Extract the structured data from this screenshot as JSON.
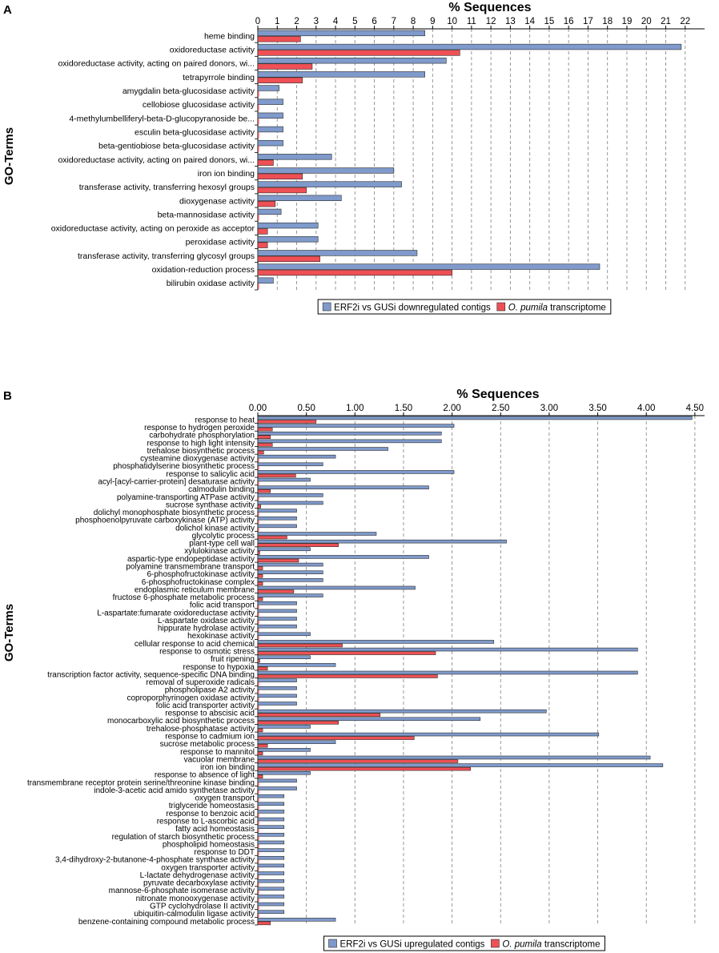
{
  "colors": {
    "series1": "#7f9acb",
    "series2": "#ee5055",
    "grid": "#8c8c8c",
    "axis": "#000000"
  },
  "chart_data": [
    {
      "panel_label": "A",
      "type": "bar",
      "orientation": "horizontal",
      "title": "% Sequences",
      "xlabel": "% Sequences",
      "ylabel": "GO-Terms",
      "xlim": [
        0,
        23
      ],
      "ticks": [
        0,
        1,
        2,
        3,
        4,
        5,
        6,
        7,
        8,
        9,
        10,
        11,
        12,
        13,
        14,
        15,
        16,
        17,
        18,
        19,
        20,
        21,
        22
      ],
      "tick_labels": [
        "0",
        "1",
        "2",
        "3",
        "4",
        "5",
        "6",
        "7",
        "8",
        "9",
        "10",
        "11",
        "12",
        "13",
        "14",
        "15",
        "16",
        "17",
        "18",
        "19",
        "20",
        "21",
        "22"
      ],
      "grid": true,
      "legend": "bottom",
      "categories": [
        "heme binding",
        "oxidoreductase activity",
        "oxidoreductase activity, acting on paired donors, wi...",
        "tetrapyrrole binding",
        "amygdalin beta-glucosidase activity",
        "cellobiose glucosidase activity",
        "4-methylumbelliferyl-beta-D-glucopyranoside be...",
        "esculin beta-glucosidase activity",
        "beta-gentiobiose beta-glucosidase activity",
        "oxidoreductase activity, acting on paired donors, wi...",
        "iron ion binding",
        "transferase activity, transferring hexosyl groups",
        "dioxygenase activity",
        "beta-mannosidase activity",
        "oxidoreductase activity, acting on peroxide as acceptor",
        "peroxidase activity",
        "transferase activity, transferring glycosyl groups",
        "oxidation-reduction process",
        "bilirubin oxidase activity"
      ],
      "series": [
        {
          "name": "ERF2i vs GUSi downregulated contigs",
          "legend_prefix": "ERF2i vs GUSi downregulated contigs",
          "legend_italic": "",
          "color": "#7f9acb",
          "values": [
            8.6,
            21.8,
            9.7,
            8.6,
            1.1,
            1.3,
            1.3,
            1.3,
            1.3,
            3.8,
            7.0,
            7.4,
            4.3,
            1.2,
            3.1,
            3.1,
            8.2,
            17.6,
            0.8
          ]
        },
        {
          "name": "O. pumila transcriptome",
          "legend_prefix": "",
          "legend_italic": "O. pumila",
          "legend_suffix": " transcriptome",
          "color": "#ee5055",
          "values": [
            2.2,
            10.4,
            2.8,
            2.3,
            0.0,
            0.0,
            0.0,
            0.0,
            0.0,
            0.8,
            2.3,
            2.5,
            0.9,
            0.0,
            0.5,
            0.5,
            3.2,
            10.0,
            0.0
          ]
        }
      ]
    },
    {
      "panel_label": "B",
      "type": "bar",
      "orientation": "horizontal",
      "title": "% Sequences",
      "xlabel": "% Sequences",
      "ylabel": "GO-Terms",
      "xlim": [
        0,
        4.6
      ],
      "ticks": [
        0,
        0.5,
        1.0,
        1.5,
        2.0,
        2.5,
        3.0,
        3.5,
        4.0,
        4.5
      ],
      "tick_labels": [
        "0.00",
        "0.50",
        "1.00",
        "1.50",
        "2.00",
        "2.50",
        "3.00",
        "3.50",
        "4.00",
        "4.50"
      ],
      "grid": true,
      "legend": "bottom",
      "categories": [
        "response to heat",
        "response to hydrogen peroxide",
        "carbohydrate phosphorylation",
        "response to high light intensity",
        "trehalose biosynthetic process",
        "cysteamine dioxygenase activity",
        "phosphatidylserine biosynthetic process",
        "response to salicylic acid",
        "acyl-[acyl-carrier-protein] desaturase activity",
        "calmodulin binding",
        "polyamine-transporting ATPase activity",
        "sucrose synthase activity",
        "dolichyl monophosphate biosynthetic process",
        "phosphoenolpyruvate carboxykinase (ATP) activity",
        "dolichol kinase activity",
        "glycolytic process",
        "plant-type cell wall",
        "xylulokinase activity",
        "aspartic-type endopeptidase activity",
        "polyamine transmembrane transport",
        "6-phosphofructokinase activity",
        "6-phosphofructokinase complex",
        "endoplasmic reticulum membrane",
        "fructose 6-phosphate metabolic process",
        "folic acid transport",
        "L-aspartate:fumarate oxidoreductase activity",
        "L-aspartate oxidase activity",
        "hippurate hydrolase activity",
        "hexokinase activity",
        "cellular response to acid chemical",
        "response to osmotic stress",
        "fruit ripening",
        "response to hypoxia",
        "transcription factor activity, sequence-specific DNA binding",
        "removal of superoxide radicals",
        "phospholipase A2 activity",
        "coproporphyrinogen oxidase activity",
        "folic acid transporter activity",
        "response to abscisic acid",
        "monocarboxylic acid biosynthetic process",
        "trehalose-phosphatase activity",
        "response to cadmium ion",
        "sucrose metabolic process",
        "response to mannitol",
        "vacuolar membrane",
        "iron ion binding",
        "response to absence of light",
        "transmembrane receptor protein serine/threonine kinase binding",
        "indole-3-acetic acid amido synthetase activity",
        "oxygen transport",
        "triglyceride homeostasis",
        "response to benzoic acid",
        "response to L-ascorbic acid",
        "fatty acid homeostasis",
        "regulation of starch biosynthetic process",
        "phospholipid homeostasis",
        "response to DDT",
        "3,4-dihydroxy-2-butanone-4-phosphate synthase activity",
        "oxygen transporter activity",
        "L-lactate dehydrogenase activity",
        "pyruvate decarboxylase activity",
        "mannose-6-phosphate isomerase activity",
        "nitronate monooxygenase activity",
        "GTP cyclohydrolase II activity",
        "ubiquitin-calmodulin ligase activity",
        "benzene-containing compound metabolic process"
      ],
      "series": [
        {
          "name": "ERF2i vs GUSi upregulated contigs",
          "legend_prefix": "ERF2i vs GUSi upregulated contigs",
          "legend_italic": "",
          "color": "#7f9acb",
          "values": [
            4.47,
            2.02,
            1.89,
            1.89,
            1.34,
            0.8,
            0.67,
            2.02,
            0.54,
            1.76,
            0.67,
            0.67,
            0.4,
            0.4,
            0.4,
            1.22,
            2.56,
            0.54,
            1.76,
            0.67,
            0.67,
            0.67,
            1.62,
            0.67,
            0.4,
            0.4,
            0.4,
            0.4,
            0.54,
            2.43,
            3.91,
            0.54,
            0.8,
            3.91,
            0.4,
            0.4,
            0.4,
            0.4,
            2.97,
            2.29,
            0.54,
            3.51,
            0.8,
            0.54,
            4.04,
            4.17,
            0.54,
            0.4,
            0.4,
            0.27,
            0.27,
            0.27,
            0.27,
            0.27,
            0.27,
            0.27,
            0.27,
            0.27,
            0.27,
            0.27,
            0.27,
            0.27,
            0.27,
            0.27,
            0.27,
            0.8
          ]
        },
        {
          "name": "O. pumila transcriptome",
          "legend_prefix": "",
          "legend_italic": "O. pumila",
          "legend_suffix": " transcriptome",
          "color": "#ee5055",
          "values": [
            0.6,
            0.15,
            0.13,
            0.15,
            0.06,
            0.0,
            0.0,
            0.39,
            0.0,
            0.13,
            0.0,
            0.03,
            0.0,
            0.0,
            0.0,
            0.3,
            0.83,
            0.02,
            0.42,
            0.05,
            0.05,
            0.05,
            0.37,
            0.05,
            0.0,
            0.0,
            0.0,
            0.0,
            0.0,
            0.87,
            1.83,
            0.02,
            0.1,
            1.85,
            0.0,
            0.0,
            0.0,
            0.0,
            1.26,
            0.83,
            0.05,
            1.61,
            0.1,
            0.05,
            2.06,
            2.19,
            0.05,
            0.0,
            0.0,
            0.0,
            0.0,
            0.0,
            0.0,
            0.0,
            0.0,
            0.0,
            0.0,
            0.0,
            0.0,
            0.0,
            0.0,
            0.0,
            0.0,
            0.0,
            0.0,
            0.13
          ]
        }
      ]
    }
  ]
}
